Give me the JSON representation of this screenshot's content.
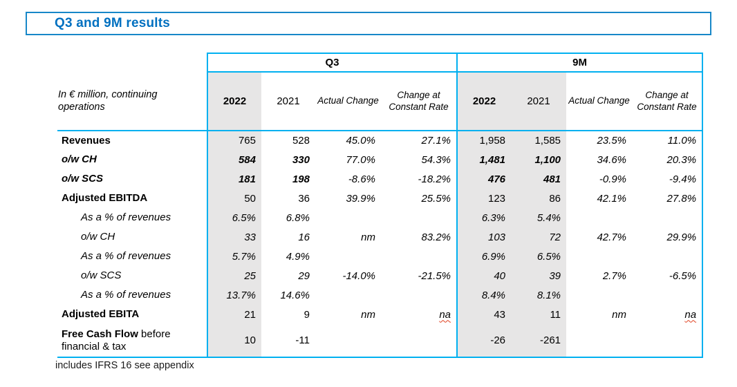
{
  "slide": {
    "title": "Q3 and 9M results",
    "footnote": "includes IFRS 16 see appendix",
    "accent_border_color": "#1787C8",
    "title_color": "#0070C0",
    "table_line_color": "#00B0F0",
    "highlight_fill_color": "#E7E6E6"
  },
  "table": {
    "unit_label": "In € million, continuing operations",
    "groups": [
      {
        "label": "Q3"
      },
      {
        "label": "9M"
      }
    ],
    "col_headers": [
      "2022",
      "2021",
      "Actual Change",
      "Change at Constant Rate"
    ],
    "rows": [
      {
        "label": "Revenues",
        "values": [
          "765",
          "528",
          "45.0%",
          "27.1%",
          "1,958",
          "1,585",
          "23.5%",
          "11.0%"
        ]
      },
      {
        "label": "o/w CH",
        "values": [
          "584",
          "330",
          "77.0%",
          "54.3%",
          "1,481",
          "1,100",
          "34.6%",
          "20.3%"
        ]
      },
      {
        "label": "o/w SCS",
        "values": [
          "181",
          "198",
          "-8.6%",
          "-18.2%",
          "476",
          "481",
          "-0.9%",
          "-9.4%"
        ]
      },
      {
        "label": "Adjusted EBITDA",
        "values": [
          "50",
          "36",
          "39.9%",
          "25.5%",
          "123",
          "86",
          "42.1%",
          "27.8%"
        ]
      },
      {
        "label": "As a % of revenues",
        "values": [
          "6.5%",
          "6.8%",
          "",
          "",
          "6.3%",
          "5.4%",
          "",
          ""
        ]
      },
      {
        "label": "o/w CH",
        "values": [
          "33",
          "16",
          "nm",
          "83.2%",
          "103",
          "72",
          "42.7%",
          "29.9%"
        ]
      },
      {
        "label": "As a % of revenues",
        "values": [
          "5.7%",
          "4.9%",
          "",
          "",
          "6.9%",
          "6.5%",
          "",
          ""
        ]
      },
      {
        "label": "o/w SCS",
        "values": [
          "25",
          "29",
          "-14.0%",
          "-21.5%",
          "40",
          "39",
          "2.7%",
          "-6.5%"
        ]
      },
      {
        "label": "As a % of revenues",
        "values": [
          "13.7%",
          "14.6%",
          "",
          "",
          "8.4%",
          "8.1%",
          "",
          ""
        ]
      },
      {
        "label": "Adjusted EBITA",
        "values": [
          "21",
          "9",
          "nm",
          "na",
          "43",
          "11",
          "nm",
          "na"
        ]
      },
      {
        "label": "Free Cash Flow",
        "label_suffix": " before financial & tax",
        "values": [
          "10",
          "-11",
          "",
          "",
          "-26",
          "-261",
          "",
          ""
        ]
      }
    ]
  }
}
